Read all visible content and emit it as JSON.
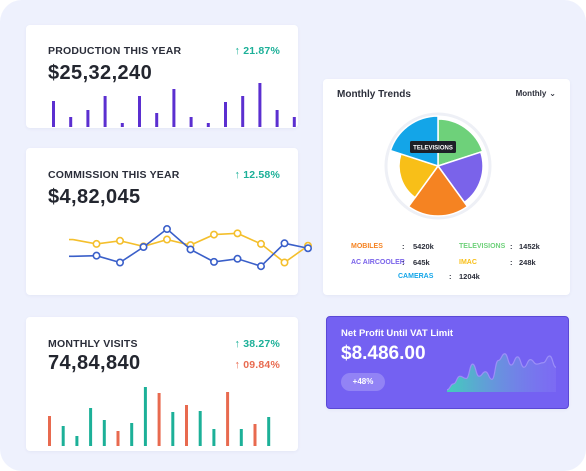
{
  "colors": {
    "background": "#eef1fd",
    "bar_purple": "#5b2fd0",
    "bar_teal": "#1cb098",
    "bar_coral": "#e86a4f",
    "line_yellow": "#f4bf2c",
    "line_blue": "#3a5fc9",
    "profit_card": "#7461f2"
  },
  "production": {
    "title": "PRODUCTION THIS YEAR",
    "change": "21.87%",
    "change_direction": "up",
    "value": "$25,32,240",
    "chart_data": {
      "type": "bar",
      "values": [
        26,
        10,
        17,
        31,
        4,
        31,
        14,
        38,
        10,
        4,
        25,
        31,
        44,
        17,
        10
      ]
    }
  },
  "commission": {
    "title": "COMMISSION THIS YEAR",
    "change": "12.58%",
    "change_direction": "up",
    "value": "$4,82,045",
    "chart_data": {
      "type": "line",
      "series": [
        {
          "color": "yellow",
          "values": [
            62,
            55,
            60,
            51,
            62,
            53,
            70,
            72,
            55,
            25,
            52
          ]
        },
        {
          "color": "blue",
          "values": [
            35,
            36,
            25,
            50,
            79,
            46,
            26,
            31,
            19,
            56,
            48
          ]
        }
      ],
      "ylim": [
        0,
        100
      ]
    }
  },
  "visits": {
    "title": "MONTHLY VISITS",
    "value": "74,84,840",
    "change_up": "38.27%",
    "change_down": "09.84%",
    "chart_data": {
      "type": "bar",
      "series": [
        {
          "color": "coral",
          "values": [
            30,
            15,
            53,
            41,
            54,
            22
          ]
        },
        {
          "color": "teal",
          "values": [
            20,
            10,
            38,
            26,
            23,
            59,
            34,
            35,
            17,
            17,
            29
          ]
        }
      ]
    }
  },
  "trends": {
    "title": "Monthly Trends",
    "period": "Monthly",
    "tooltip": "TELEVISIONS",
    "legend": [
      {
        "label": "MOBILES",
        "value": "5420k",
        "color": "#f58322"
      },
      {
        "label": "TELEVISIONS",
        "value": "1452k",
        "color": "#6ed17a"
      },
      {
        "label": "AC AIRCOOLER",
        "value": "645k",
        "color": "#7a63ea"
      },
      {
        "label": "IMAC",
        "value": "248k",
        "color": "#f8bf18"
      },
      {
        "label": "CAMERAS",
        "value": "1204k",
        "color": "#13a5e8"
      }
    ],
    "separator": ":",
    "chart_data": {
      "type": "pie",
      "style": "polar-area",
      "slices": [
        {
          "label": "TELEVISIONS",
          "value": 0.94,
          "color": "#6ed17a"
        },
        {
          "label": "AC AIRCOOLER",
          "value": 0.9,
          "color": "#7a63ea"
        },
        {
          "label": "MOBILES",
          "value": 1.0,
          "color": "#f58322"
        },
        {
          "label": "IMAC",
          "value": 0.78,
          "color": "#f8bf18"
        },
        {
          "label": "CAMERAS",
          "value": 1.0,
          "color": "#13a5e8"
        }
      ]
    }
  },
  "profit": {
    "title": "Net Profit Until VAT Limit",
    "value": "$8.486.00",
    "badge": "+48%",
    "chart_data": {
      "type": "area",
      "values": [
        5,
        18,
        35,
        30,
        62,
        35,
        45,
        28,
        70,
        85,
        60,
        78,
        55,
        72,
        62,
        65,
        80,
        55
      ]
    }
  }
}
